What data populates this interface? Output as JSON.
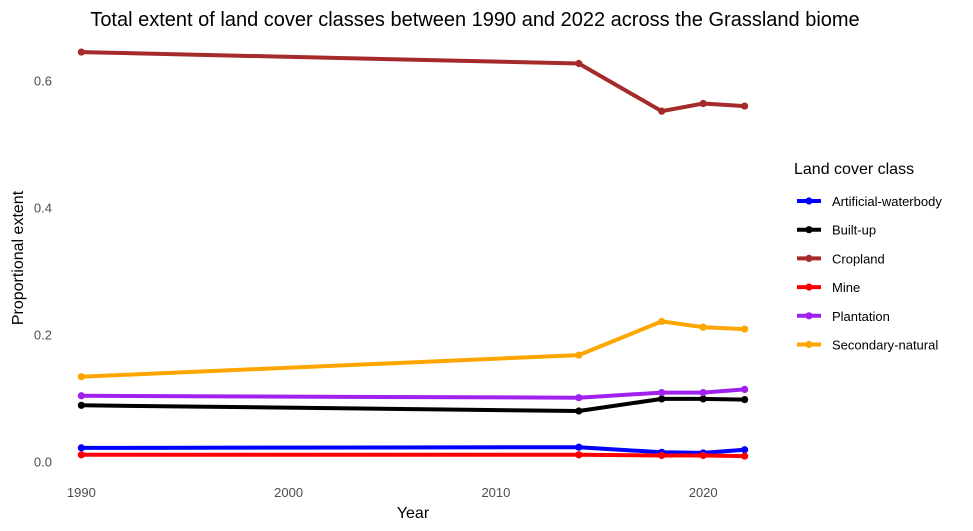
{
  "chart_data": {
    "type": "line",
    "title": "Total extent of land cover classes between 1990 and 2022 across the Grassland biome",
    "xlabel": "Year",
    "ylabel": "Proportional extent",
    "xlim": [
      1989.5,
      2022.5
    ],
    "ylim": [
      -0.015,
      0.665
    ],
    "x_ticks": [
      1990,
      2000,
      2010,
      2020
    ],
    "y_ticks": [
      0.0,
      0.2,
      0.4,
      0.6
    ],
    "y_tick_labels": [
      "0.0",
      "0.2",
      "0.4",
      "0.6"
    ],
    "grid": false,
    "legend": {
      "title": "Land cover class",
      "position": "right"
    },
    "x": [
      1990,
      2014,
      2018,
      2020,
      2022
    ],
    "series": [
      {
        "name": "Artificial-waterbody",
        "color": "#0000ff",
        "values": [
          0.023,
          0.024,
          0.016,
          0.015,
          0.02
        ]
      },
      {
        "name": "Built-up",
        "color": "#000000",
        "values": [
          0.09,
          0.081,
          0.1,
          0.1,
          0.099
        ]
      },
      {
        "name": "Cropland",
        "color": "#a52a2a",
        "values": [
          0.646,
          0.628,
          0.553,
          0.565,
          0.561
        ]
      },
      {
        "name": "Mine",
        "color": "#ff0000",
        "values": [
          0.012,
          0.012,
          0.011,
          0.011,
          0.01
        ]
      },
      {
        "name": "Plantation",
        "color": "#a020f0",
        "values": [
          0.105,
          0.102,
          0.11,
          0.11,
          0.115
        ]
      },
      {
        "name": "Secondary-natural",
        "color": "#ffa500",
        "values": [
          0.135,
          0.169,
          0.222,
          0.213,
          0.21
        ]
      }
    ]
  }
}
